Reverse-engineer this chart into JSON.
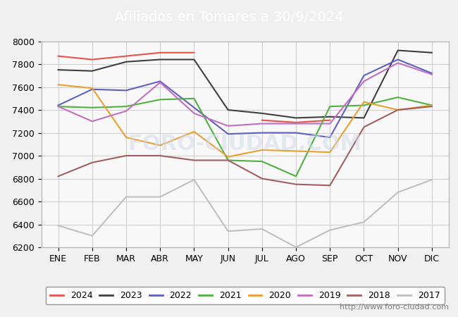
{
  "title": "Afiliados en Tomares a 30/9/2024",
  "title_bg_color": "#4a90d9",
  "title_text_color": "white",
  "xlabel": "",
  "ylabel": "",
  "ylim": [
    6200,
    8000
  ],
  "yticks": [
    6200,
    6400,
    6600,
    6800,
    7000,
    7200,
    7400,
    7600,
    7800,
    8000
  ],
  "months": [
    "ENE",
    "FEB",
    "MAR",
    "ABR",
    "MAY",
    "JUN",
    "JUL",
    "AGO",
    "SEP",
    "OCT",
    "NOV",
    "DIC"
  ],
  "watermark": "http://www.foro-ciudad.com",
  "series": {
    "2024": {
      "color": "#e8534a",
      "data": [
        7870,
        7840,
        7870,
        7900,
        7900,
        null,
        7310,
        7290,
        7310,
        null,
        null,
        null
      ]
    },
    "2023": {
      "color": "#404040",
      "data": [
        7750,
        7740,
        7820,
        7840,
        7840,
        7400,
        7370,
        7330,
        7340,
        7330,
        7920,
        7900
      ]
    },
    "2022": {
      "color": "#6060c0",
      "data": [
        7440,
        7580,
        7570,
        7650,
        7420,
        7190,
        7200,
        7200,
        7160,
        7700,
        7840,
        7720
      ]
    },
    "2021": {
      "color": "#50b040",
      "data": [
        7430,
        7420,
        7430,
        7490,
        7500,
        6960,
        6950,
        6820,
        7430,
        7440,
        7510,
        7440
      ]
    },
    "2020": {
      "color": "#e8a030",
      "data": [
        7620,
        7590,
        7160,
        7090,
        7210,
        6990,
        7050,
        7040,
        7030,
        7470,
        7400,
        7440
      ]
    },
    "2019": {
      "color": "#c070c0",
      "data": [
        7430,
        7300,
        7390,
        7640,
        7370,
        7260,
        7280,
        7280,
        7280,
        7650,
        7810,
        7710
      ]
    },
    "2018": {
      "color": "#a06060",
      "data": [
        6820,
        6940,
        7000,
        7000,
        6960,
        6960,
        6800,
        6750,
        6740,
        7250,
        7400,
        7430
      ]
    },
    "2017": {
      "color": "#c0c0c0",
      "data": [
        6390,
        6300,
        6640,
        6640,
        6790,
        6340,
        6360,
        6200,
        6350,
        6420,
        6680,
        6790
      ]
    }
  },
  "legend_order": [
    "2024",
    "2023",
    "2022",
    "2021",
    "2020",
    "2019",
    "2018",
    "2017"
  ],
  "bg_color": "#f0f0f0",
  "plot_bg_color": "#f8f8f8",
  "grid_color": "#d0d0d0",
  "fontsize_title": 14,
  "fontsize_ticks": 9,
  "fontsize_legend": 9,
  "fontsize_watermark": 8
}
